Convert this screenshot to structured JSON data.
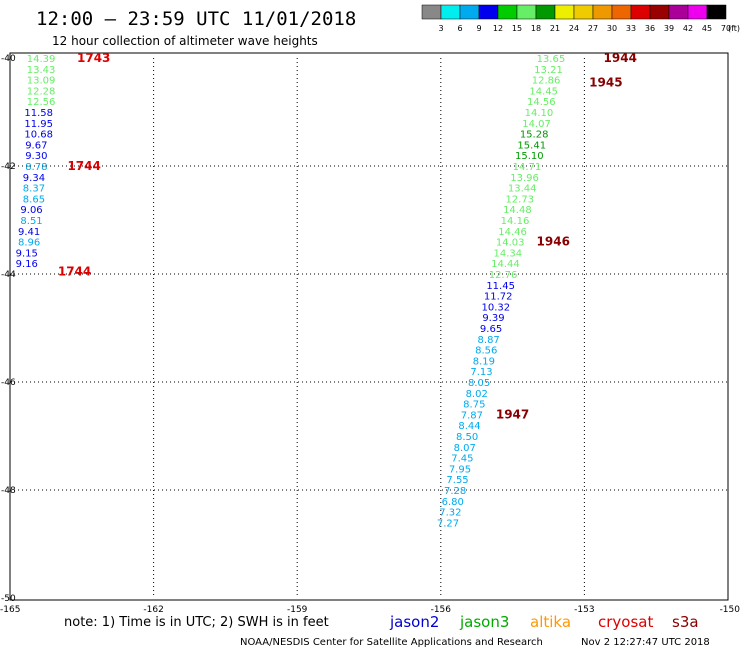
{
  "title": "12:00 – 23:59 UTC 11/01/2018",
  "subtitle": "12 hour collection of altimeter wave heights",
  "note": "note:  1) Time is in UTC;  2) SWH is in feet",
  "credit": "NOAA/NESDIS Center for Satellite Applications and Research",
  "timestamp": "Nov  2 12:27:47 UTC 2018",
  "satellites": [
    {
      "name": "jason2",
      "color": "#0000cc"
    },
    {
      "name": "jason3",
      "color": "#00aa00"
    },
    {
      "name": "altika",
      "color": "#ff9900"
    },
    {
      "name": "cryosat",
      "color": "#dd0000"
    },
    {
      "name": "s3a",
      "color": "#880000"
    }
  ],
  "colorbar": {
    "labels": [
      "3",
      "6",
      "9",
      "12",
      "15",
      "18",
      "21",
      "24",
      "27",
      "30",
      "33",
      "36",
      "39",
      "42",
      "45",
      "70",
      "(ft)"
    ],
    "colors": [
      "#888888",
      "#00eeee",
      "#00aaee",
      "#0000ee",
      "#00cc00",
      "#66ee66",
      "#009900",
      "#eeee00",
      "#eecc00",
      "#ee9900",
      "#ee6600",
      "#dd0000",
      "#990000",
      "#aa0099",
      "#ee00ee",
      "#000000"
    ]
  },
  "chart_data": {
    "type": "scatter",
    "xlim": [
      -165,
      -150
    ],
    "ylim": [
      -50,
      -40
    ],
    "x_ticks": [
      "-165",
      "-162",
      "-159",
      "-156",
      "-153",
      "-150"
    ],
    "y_ticks": [
      "-40",
      "-42",
      "-44",
      "-46",
      "-48",
      "-50"
    ],
    "tracks": [
      {
        "color": "#dd0000",
        "points": [
          {
            "lon": -164.35,
            "lat": -40.0,
            "value": "14.39",
            "color": "#66ee66"
          },
          {
            "lon": -164.35,
            "lat": -40.2,
            "value": "13.43",
            "color": "#66ee66"
          },
          {
            "lon": -164.35,
            "lat": -40.4,
            "value": "13.09",
            "color": "#66ee66"
          },
          {
            "lon": -164.35,
            "lat": -40.6,
            "value": "12.28",
            "color": "#66ee66"
          },
          {
            "lon": -164.35,
            "lat": -40.8,
            "value": "12.56",
            "color": "#66ee66"
          },
          {
            "lon": -164.4,
            "lat": -41.0,
            "value": "11.58",
            "color": "#0000ee"
          },
          {
            "lon": -164.4,
            "lat": -41.2,
            "value": "11.95",
            "color": "#0000ee"
          },
          {
            "lon": -164.4,
            "lat": -41.4,
            "value": "10.68",
            "color": "#0000ee"
          },
          {
            "lon": -164.45,
            "lat": -41.6,
            "value": "9.67",
            "color": "#0000ee"
          },
          {
            "lon": -164.45,
            "lat": -41.8,
            "value": "9.30",
            "color": "#0000ee"
          },
          {
            "lon": -164.45,
            "lat": -42.0,
            "value": "8.78",
            "color": "#00aaee"
          },
          {
            "lon": -164.5,
            "lat": -42.2,
            "value": "9.34",
            "color": "#0000ee"
          },
          {
            "lon": -164.5,
            "lat": -42.4,
            "value": "8.37",
            "color": "#00aaee"
          },
          {
            "lon": -164.5,
            "lat": -42.6,
            "value": "8.65",
            "color": "#00aaee"
          },
          {
            "lon": -164.55,
            "lat": -42.8,
            "value": "9.06",
            "color": "#0000ee"
          },
          {
            "lon": -164.55,
            "lat": -43.0,
            "value": "8.51",
            "color": "#00aaee"
          },
          {
            "lon": -164.6,
            "lat": -43.2,
            "value": "9.41",
            "color": "#0000ee"
          },
          {
            "lon": -164.6,
            "lat": -43.4,
            "value": "8.96",
            "color": "#00aaee"
          },
          {
            "lon": -164.65,
            "lat": -43.6,
            "value": "9.15",
            "color": "#0000ee"
          },
          {
            "lon": -164.65,
            "lat": -43.8,
            "value": "9.16",
            "color": "#0000ee"
          }
        ],
        "time_labels": [
          {
            "lon": -163.6,
            "lat": -40.0,
            "text": "1743"
          },
          {
            "lon": -163.8,
            "lat": -42.0,
            "text": "1744"
          },
          {
            "lon": -164.0,
            "lat": -43.95,
            "text": "1744"
          }
        ]
      },
      {
        "color": "#880000",
        "points": [
          {
            "lon": -153.7,
            "lat": -40.0,
            "value": "13.65",
            "color": "#66ee66"
          },
          {
            "lon": -153.75,
            "lat": -40.2,
            "value": "13.21",
            "color": "#66ee66"
          },
          {
            "lon": -153.8,
            "lat": -40.4,
            "value": "12.86",
            "color": "#66ee66"
          },
          {
            "lon": -153.85,
            "lat": -40.6,
            "value": "14.45",
            "color": "#66ee66"
          },
          {
            "lon": -153.9,
            "lat": -40.8,
            "value": "14.56",
            "color": "#66ee66"
          },
          {
            "lon": -153.95,
            "lat": -41.0,
            "value": "14.10",
            "color": "#66ee66"
          },
          {
            "lon": -154.0,
            "lat": -41.2,
            "value": "14.07",
            "color": "#66ee66"
          },
          {
            "lon": -154.05,
            "lat": -41.4,
            "value": "15.28",
            "color": "#009900"
          },
          {
            "lon": -154.1,
            "lat": -41.6,
            "value": "15.41",
            "color": "#009900"
          },
          {
            "lon": -154.15,
            "lat": -41.8,
            "value": "15.10",
            "color": "#009900"
          },
          {
            "lon": -154.2,
            "lat": -42.0,
            "value": "14.71",
            "color": "#66ee66"
          },
          {
            "lon": -154.25,
            "lat": -42.2,
            "value": "13.96",
            "color": "#66ee66"
          },
          {
            "lon": -154.3,
            "lat": -42.4,
            "value": "13.44",
            "color": "#66ee66"
          },
          {
            "lon": -154.35,
            "lat": -42.6,
            "value": "12.73",
            "color": "#66ee66"
          },
          {
            "lon": -154.4,
            "lat": -42.8,
            "value": "14.48",
            "color": "#66ee66"
          },
          {
            "lon": -154.45,
            "lat": -43.0,
            "value": "14.16",
            "color": "#66ee66"
          },
          {
            "lon": -154.5,
            "lat": -43.2,
            "value": "14.46",
            "color": "#66ee66"
          },
          {
            "lon": -154.55,
            "lat": -43.4,
            "value": "14.03",
            "color": "#66ee66"
          },
          {
            "lon": -154.6,
            "lat": -43.6,
            "value": "14.34",
            "color": "#66ee66"
          },
          {
            "lon": -154.65,
            "lat": -43.8,
            "value": "14.44",
            "color": "#66ee66"
          },
          {
            "lon": -154.7,
            "lat": -44.0,
            "value": "12.76",
            "color": "#66ee66"
          },
          {
            "lon": -154.75,
            "lat": -44.2,
            "value": "11.45",
            "color": "#0000ee"
          },
          {
            "lon": -154.8,
            "lat": -44.4,
            "value": "11.72",
            "color": "#0000ee"
          },
          {
            "lon": -154.85,
            "lat": -44.6,
            "value": "10.32",
            "color": "#0000ee"
          },
          {
            "lon": -154.9,
            "lat": -44.8,
            "value": "9.39",
            "color": "#0000ee"
          },
          {
            "lon": -154.95,
            "lat": -45.0,
            "value": "9.65",
            "color": "#0000ee"
          },
          {
            "lon": -155.0,
            "lat": -45.2,
            "value": "8.87",
            "color": "#00aaee"
          },
          {
            "lon": -155.05,
            "lat": -45.4,
            "value": "8.56",
            "color": "#00aaee"
          },
          {
            "lon": -155.1,
            "lat": -45.6,
            "value": "8.19",
            "color": "#00aaee"
          },
          {
            "lon": -155.15,
            "lat": -45.8,
            "value": "7.13",
            "color": "#00aaee"
          },
          {
            "lon": -155.2,
            "lat": -46.0,
            "value": "8.05",
            "color": "#00aaee"
          },
          {
            "lon": -155.25,
            "lat": -46.2,
            "value": "8.02",
            "color": "#00aaee"
          },
          {
            "lon": -155.3,
            "lat": -46.4,
            "value": "8.75",
            "color": "#00aaee"
          },
          {
            "lon": -155.35,
            "lat": -46.6,
            "value": "7.87",
            "color": "#00aaee"
          },
          {
            "lon": -155.4,
            "lat": -46.8,
            "value": "8.44",
            "color": "#00aaee"
          },
          {
            "lon": -155.45,
            "lat": -47.0,
            "value": "8.50",
            "color": "#00aaee"
          },
          {
            "lon": -155.5,
            "lat": -47.2,
            "value": "8.07",
            "color": "#00aaee"
          },
          {
            "lon": -155.55,
            "lat": -47.4,
            "value": "7.45",
            "color": "#00aaee"
          },
          {
            "lon": -155.6,
            "lat": -47.6,
            "value": "7.95",
            "color": "#00aaee"
          },
          {
            "lon": -155.65,
            "lat": -47.8,
            "value": "7.55",
            "color": "#00aaee"
          },
          {
            "lon": -155.7,
            "lat": -48.0,
            "value": "7.28",
            "color": "#00aaee"
          },
          {
            "lon": -155.75,
            "lat": -48.2,
            "value": "6.80",
            "color": "#00aaee"
          },
          {
            "lon": -155.8,
            "lat": -48.4,
            "value": "7.32",
            "color": "#00aaee"
          },
          {
            "lon": -155.85,
            "lat": -48.6,
            "value": "7.27",
            "color": "#00aaee"
          }
        ],
        "time_labels": [
          {
            "lon": -152.6,
            "lat": -40.0,
            "text": "1944"
          },
          {
            "lon": -152.9,
            "lat": -40.45,
            "text": "1945"
          },
          {
            "lon": -154.0,
            "lat": -43.4,
            "text": "1946"
          },
          {
            "lon": -154.85,
            "lat": -46.6,
            "text": "1947"
          }
        ]
      }
    ]
  }
}
